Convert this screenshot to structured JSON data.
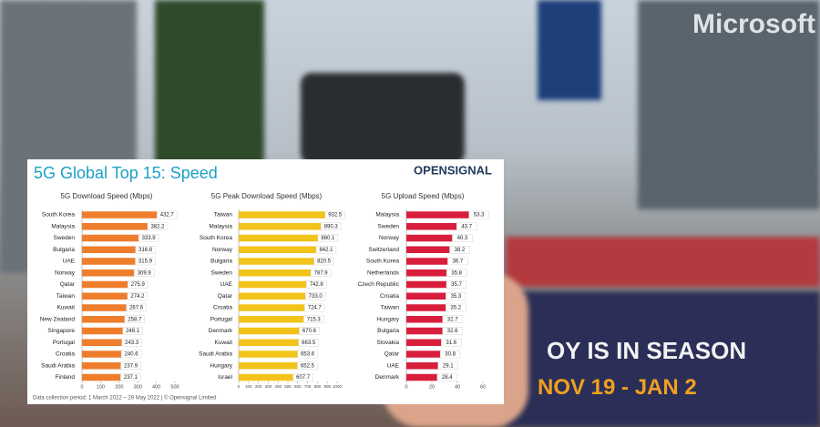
{
  "title": "5G Global Top 15: Speed",
  "logo": "OPENSIGNAL",
  "footnote": "Data collection period: 1 March 2022 – 29 May 2022 | © Opensignal Limited",
  "background_signs": [
    "Microsoft",
    "OY IS IN SEASON",
    "NOV 19 - JAN 2"
  ],
  "chart_data": [
    {
      "type": "barh",
      "title": "5G Download Speed (Mbps)",
      "color": "#ee7d2c",
      "categories": [
        "South Korea",
        "Malaysia",
        "Sweden",
        "Bulgaria",
        "UAE",
        "Norway",
        "Qatar",
        "Taiwan",
        "Kuwait",
        "New Zealand",
        "Singapore",
        "Portugal",
        "Croatia",
        "Saudi Arabia",
        "Finland"
      ],
      "values": [
        432.7,
        382.2,
        333.9,
        316.8,
        315.9,
        309.9,
        275.9,
        274.2,
        267.6,
        258.7,
        248.1,
        243.3,
        240.6,
        237.9,
        237.1
      ],
      "xlim": [
        0,
        500
      ],
      "xticks": [
        0,
        100,
        200,
        300,
        400,
        500
      ]
    },
    {
      "type": "barh",
      "title": "5G Peak Download Speed (Mbps)",
      "color": "#f2c31a",
      "categories": [
        "Taiwan",
        "Malaysia",
        "South Korea",
        "Norway",
        "Bulgaria",
        "Sweden",
        "UAE",
        "Qatar",
        "Croatia",
        "Portugal",
        "Denmark",
        "Kuwait",
        "Saudi Arabia",
        "Hungary",
        "Israel"
      ],
      "values": [
        932.5,
        890.3,
        860.1,
        842.1,
        820.5,
        787.9,
        742.8,
        733,
        724.7,
        715.3,
        670.6,
        663.5,
        653.6,
        652.5,
        607.7
      ],
      "value_labels": [
        "932.5",
        "890.3",
        "860.1",
        "842.1",
        "820.5",
        "787.9",
        "742.8",
        "733.0",
        "724.7",
        "715.3",
        "670.6",
        "663.5",
        "653.6",
        "652.5",
        "607.7"
      ],
      "xlim": [
        0,
        1000
      ],
      "xticks": [
        0,
        100,
        200,
        300,
        400,
        500,
        600,
        700,
        800,
        900,
        1000
      ]
    },
    {
      "type": "barh",
      "title": "5G Upload Speed (Mbps)",
      "color": "#d81e3c",
      "categories": [
        "Malaysia",
        "Sweden",
        "Norway",
        "Switzerland",
        "South Korea",
        "Netherlands",
        "Czech Republic",
        "Croatia",
        "Taiwan",
        "Hungary",
        "Bulgaria",
        "Slovakia",
        "Qatar",
        "UAE",
        "Denmark"
      ],
      "values": [
        53.3,
        43.7,
        40.3,
        38.2,
        36.7,
        35.8,
        35.7,
        35.3,
        35.2,
        32.7,
        32.6,
        31.6,
        30.8,
        29.1,
        28.4
      ],
      "xlim": [
        0,
        60
      ],
      "xticks": [
        0,
        20,
        40,
        60
      ]
    }
  ]
}
